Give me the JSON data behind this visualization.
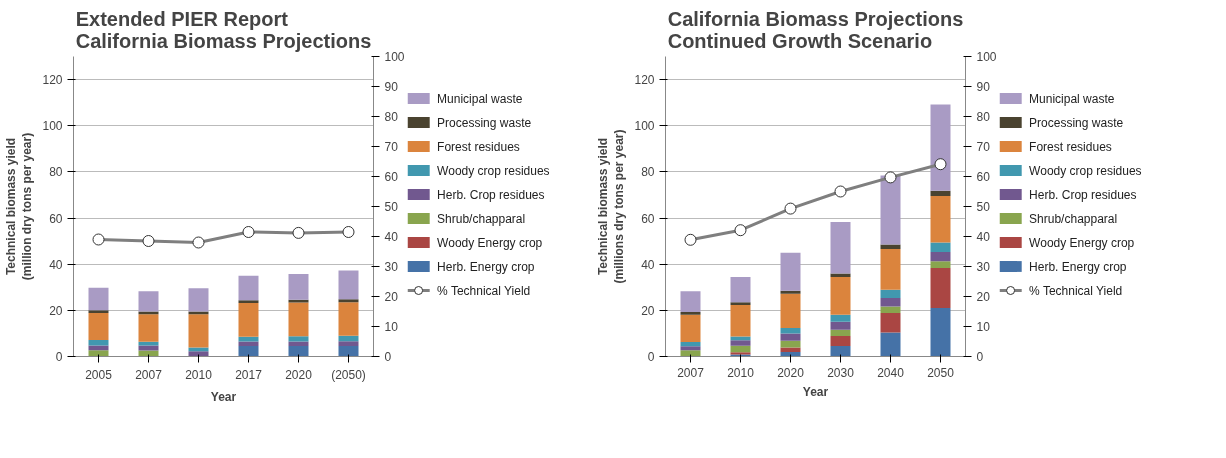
{
  "chart_data": [
    {
      "type": "bar",
      "stacked": true,
      "title": "Extended PIER Report\nCalifornia Biomass Projections",
      "xlabel": "Year",
      "ylabel": "Technical biomass yield\n(million dry tons per year)",
      "categories": [
        "2005",
        "2007",
        "2010",
        "2017",
        "2020",
        "(2050)"
      ],
      "ylim": [
        0,
        130
      ],
      "yticks": [
        0,
        20,
        40,
        60,
        80,
        100,
        120
      ],
      "y2lim": [
        0,
        100
      ],
      "y2ticks": [
        0,
        10,
        20,
        30,
        40,
        50,
        60,
        70,
        80,
        90,
        100
      ],
      "grid": "y",
      "legend": "right",
      "series": [
        {
          "name": "Herb. Energy crop",
          "color": "#4572a7",
          "values": [
            0,
            0,
            0,
            4.5,
            4.5,
            4.5
          ]
        },
        {
          "name": "Woody Energy crop",
          "color": "#aa4643",
          "values": [
            0,
            0,
            0,
            0,
            0,
            0
          ]
        },
        {
          "name": "Shrub/chapparal",
          "color": "#89a54e",
          "values": [
            2.7,
            2.6,
            0,
            0,
            0,
            0
          ]
        },
        {
          "name": "Herb. Crop residues",
          "color": "#71588f",
          "values": [
            2.1,
            2.2,
            2.3,
            2.0,
            2.0,
            2.1
          ]
        },
        {
          "name": "Woody crop residues",
          "color": "#4198af",
          "values": [
            2.3,
            1.6,
            1.6,
            2.1,
            2.3,
            2.4
          ]
        },
        {
          "name": "Forest residues",
          "color": "#db843d",
          "values": [
            11.7,
            11.9,
            14.4,
            14.6,
            14.6,
            14.5
          ]
        },
        {
          "name": "Processing waste",
          "color": "#4a4330",
          "values": [
            1.2,
            1.2,
            1.2,
            1.2,
            1.2,
            1.3
          ]
        },
        {
          "name": "Municipal waste",
          "color": "#a99bc4",
          "values": [
            9.8,
            8.8,
            10.1,
            10.6,
            11.2,
            12.5
          ]
        },
        {
          "name": "% Technical Yield",
          "type": "line",
          "axis": "y2",
          "color": "#7f7f7f",
          "marker": "circle",
          "values": [
            39,
            38.5,
            38,
            41.5,
            41.2,
            41.5
          ]
        }
      ]
    },
    {
      "type": "bar",
      "stacked": true,
      "title": "California Biomass Projections\nContinued Growth Scenario",
      "xlabel": "Year",
      "ylabel": "Technical biomass yield\n(millions dry tons per year)",
      "categories": [
        "2007",
        "2010",
        "2020",
        "2030",
        "2040",
        "2050"
      ],
      "ylim": [
        0,
        130
      ],
      "yticks": [
        0,
        20,
        40,
        60,
        80,
        100,
        120
      ],
      "y2lim": [
        0,
        100
      ],
      "y2ticks": [
        0,
        10,
        20,
        30,
        40,
        50,
        60,
        70,
        80,
        90,
        100
      ],
      "grid": "y",
      "legend": "right",
      "series": [
        {
          "name": "Herb. Energy crop",
          "color": "#4572a7",
          "values": [
            0,
            0.9,
            1.9,
            4.6,
            10.4,
            21
          ]
        },
        {
          "name": "Woody Energy crop",
          "color": "#aa4643",
          "values": [
            0,
            0.9,
            2.0,
            4.3,
            8.5,
            17.3
          ]
        },
        {
          "name": "Shrub/chapparal",
          "color": "#89a54e",
          "values": [
            2.7,
            2.9,
            2.9,
            2.7,
            2.8,
            3.0
          ]
        },
        {
          "name": "Herb. Crop residues",
          "color": "#71588f",
          "values": [
            1.7,
            2.3,
            3.2,
            3.5,
            3.6,
            4.0
          ]
        },
        {
          "name": "Woody crop residues",
          "color": "#4198af",
          "values": [
            1.9,
            1.7,
            2.4,
            3.0,
            3.6,
            4.1
          ]
        },
        {
          "name": "Forest residues",
          "color": "#db843d",
          "values": [
            11.8,
            13.6,
            14.8,
            16.3,
            17.7,
            20.1
          ]
        },
        {
          "name": "Processing waste",
          "color": "#4a4330",
          "values": [
            1.2,
            1.2,
            1.3,
            1.6,
            1.9,
            2.3
          ]
        },
        {
          "name": "Municipal waste",
          "color": "#a99bc4",
          "values": [
            9.0,
            11.0,
            16.5,
            22.3,
            29.9,
            37.4
          ]
        },
        {
          "name": "% Technical Yield",
          "type": "line",
          "axis": "y2",
          "color": "#7f7f7f",
          "marker": "circle",
          "values": [
            38.9,
            42.1,
            49.3,
            55,
            59.7,
            64.1
          ]
        }
      ]
    }
  ]
}
